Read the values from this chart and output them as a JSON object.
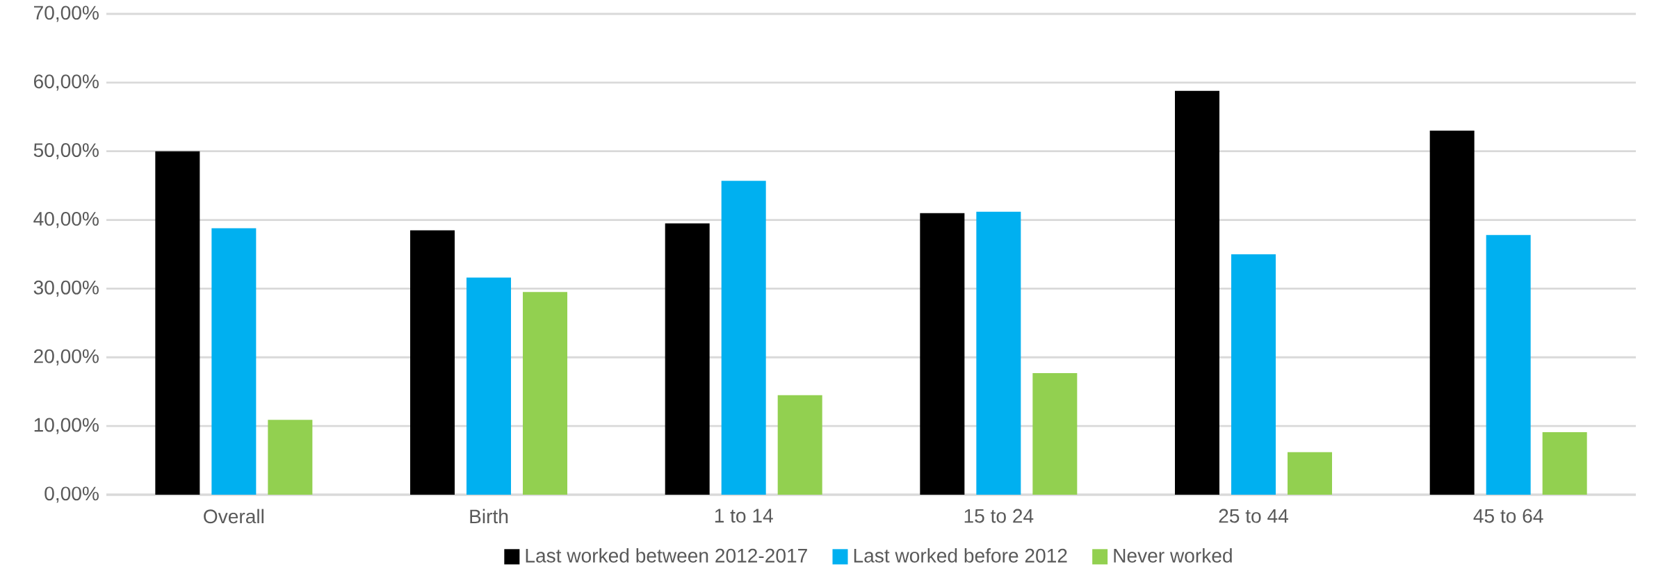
{
  "chart_data": {
    "type": "bar",
    "categories": [
      "Overall",
      "Birth",
      "1 to 14",
      "15 to 24",
      "25 to 44",
      "45 to 64"
    ],
    "series": [
      {
        "name": "Last worked between 2012-2017",
        "color": "#000000",
        "values": [
          50.0,
          38.5,
          39.5,
          41.0,
          58.8,
          53.0
        ]
      },
      {
        "name": "Last worked before 2012",
        "color": "#00b0f0",
        "values": [
          38.8,
          31.6,
          45.7,
          41.2,
          35.0,
          37.8
        ]
      },
      {
        "name": "Never worked",
        "color": "#92d050",
        "values": [
          10.9,
          29.5,
          14.5,
          17.7,
          6.2,
          9.1
        ]
      }
    ],
    "ylim": [
      0,
      70
    ],
    "yticks": [
      {
        "value": 0,
        "label": "0,00%"
      },
      {
        "value": 10,
        "label": "10,00%"
      },
      {
        "value": 20,
        "label": "20,00%"
      },
      {
        "value": 30,
        "label": "30,00%"
      },
      {
        "value": 40,
        "label": "40,00%"
      },
      {
        "value": 50,
        "label": "50,00%"
      },
      {
        "value": 60,
        "label": "60,00%"
      },
      {
        "value": 70,
        "label": "70,00%"
      }
    ],
    "grid": "y",
    "legend": "bottom"
  }
}
